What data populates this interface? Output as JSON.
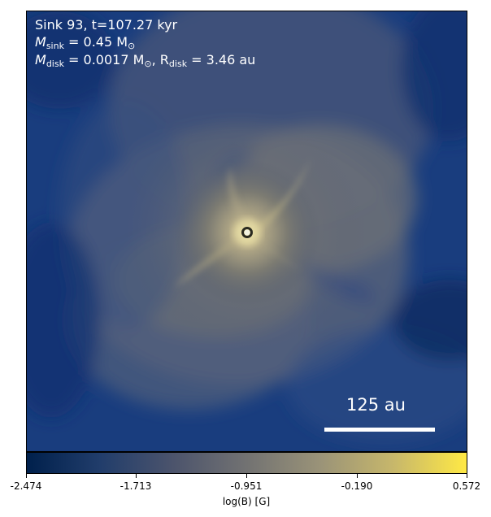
{
  "annotation": {
    "line1": "Sink 93, t=107.27 kyr",
    "msink_symbol": "M",
    "msink_sub": "sink",
    "msink_value": " = 0.45 M",
    "msink_sun": "⊙",
    "mdisk_symbol": "M",
    "mdisk_sub": "disk",
    "mdisk_value": " = 0.0017 M",
    "mdisk_sun": "⊙",
    "rdisk_prefix": ", R",
    "rdisk_sub": "disk",
    "rdisk_value": " = 3.46 au"
  },
  "scalebar": {
    "label": "125 au"
  },
  "colorbar": {
    "label": "log(B) [G]",
    "min": -2.474,
    "max": 0.572,
    "ticks": [
      "-2.474",
      "-1.713",
      "-0.951",
      "-0.190",
      "0.572"
    ],
    "colors": [
      "#00204c",
      "#213d6b",
      "#4c546c",
      "#727272",
      "#9a9378",
      "#c7b76b",
      "#ffe945"
    ]
  },
  "style": {
    "background_blue": "#1e4a8a",
    "dark_blue": "#0c2f6e",
    "sink_marker": "#f2f2e0"
  }
}
